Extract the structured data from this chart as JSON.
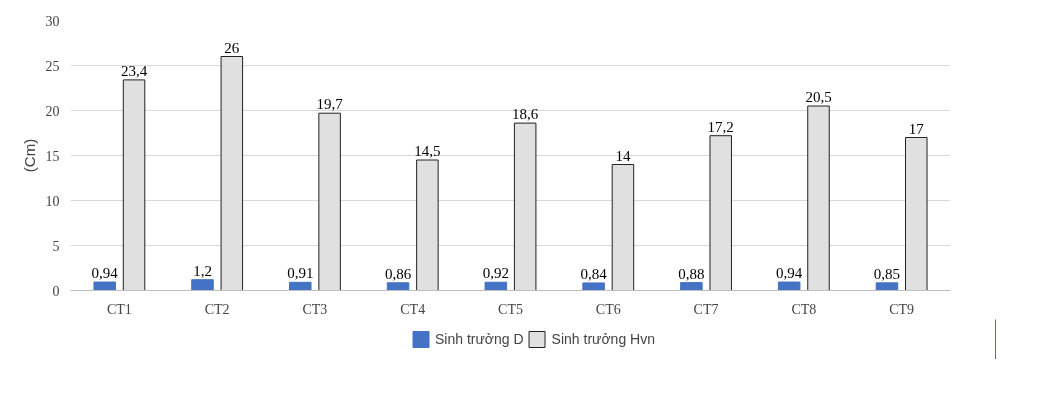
{
  "chart_data": {
    "type": "bar",
    "ylabel": "(Cm)",
    "categories": [
      "CT1",
      "CT2",
      "CT3",
      "CT4",
      "CT5",
      "CT6",
      "CT7",
      "CT8",
      "CT9"
    ],
    "series": [
      {
        "name": "Sinh trưởng D",
        "color": "#4472c4",
        "values": [
          0.94,
          1.2,
          0.91,
          0.86,
          0.92,
          0.84,
          0.88,
          0.94,
          0.85
        ],
        "value_labels": [
          "0,94",
          "1,2",
          "0,91",
          "0,86",
          "0,92",
          "0,84",
          "0,88",
          "0,94",
          "0,85"
        ]
      },
      {
        "name": "Sinh trưởng Hvn",
        "color": "#e0e0e0",
        "values": [
          23.4,
          26,
          19.7,
          14.5,
          18.6,
          14,
          17.2,
          20.5,
          17
        ],
        "value_labels": [
          "23,4",
          "26",
          "19,7",
          "14,5",
          "18,6",
          "14",
          "17,2",
          "20,5",
          "17"
        ]
      }
    ],
    "ylim": [
      0,
      30
    ],
    "yticks": [
      0,
      5,
      10,
      15,
      20,
      25,
      30
    ],
    "grid": "y",
    "legend": "bottom"
  }
}
